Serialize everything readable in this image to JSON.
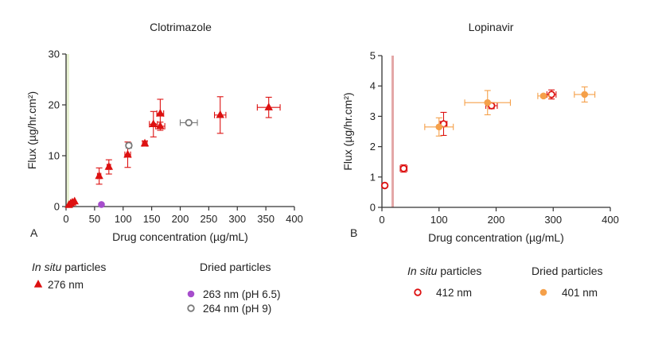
{
  "chart_data": [
    {
      "type": "scatter",
      "panel_letter": "A",
      "title": "Clotrimazole",
      "xlabel": "Drug concentration (µg/mL)",
      "ylabel": "Flux (µg/hr.cm²)",
      "xlim": [
        0,
        400
      ],
      "ylim": [
        0,
        30
      ],
      "xticks": [
        "0",
        "50",
        "100",
        "150",
        "200",
        "250",
        "300",
        "350",
        "400"
      ],
      "yticks": [
        "0",
        "10",
        "20",
        "30"
      ],
      "grid": false,
      "legend_groups": [
        {
          "heading_italic": "In situ",
          "heading_rest": " particles",
          "entries": [
            "276 nm"
          ]
        },
        {
          "heading_italic": "",
          "heading_rest": "Dried particles",
          "entries": [
            "263 nm (pH 6.5)",
            "264 nm (pH 9)"
          ]
        }
      ],
      "series": [
        {
          "name": "276 nm",
          "marker": "triangle",
          "color": "#dd1111",
          "filled": true,
          "points": [
            {
              "x": 5,
              "y": 0.3,
              "xerr": 0,
              "yerr": 0
            },
            {
              "x": 8,
              "y": 0.6,
              "xerr": 0,
              "yerr": 0
            },
            {
              "x": 11,
              "y": 0.8,
              "xerr": 0,
              "yerr": 0
            },
            {
              "x": 15,
              "y": 1.0,
              "xerr": 0,
              "yerr": 0
            },
            {
              "x": 58,
              "y": 6.0,
              "xerr": 3,
              "yerr": 1.6
            },
            {
              "x": 75,
              "y": 7.8,
              "xerr": 3,
              "yerr": 1.4
            },
            {
              "x": 108,
              "y": 10.2,
              "xerr": 5,
              "yerr": 2.5
            },
            {
              "x": 138,
              "y": 12.4,
              "xerr": 4,
              "yerr": 0.5
            },
            {
              "x": 153,
              "y": 16.2,
              "xerr": 7,
              "yerr": 2.5
            },
            {
              "x": 165,
              "y": 18.3,
              "xerr": 6,
              "yerr": 2.8
            },
            {
              "x": 165,
              "y": 15.8,
              "xerr": 8,
              "yerr": 0.8
            },
            {
              "x": 270,
              "y": 18.0,
              "xerr": 10,
              "yerr": 3.6
            },
            {
              "x": 355,
              "y": 19.5,
              "xerr": 20,
              "yerr": 2.0
            }
          ]
        },
        {
          "name": "263 nm (pH 6.5)",
          "marker": "circle",
          "color": "#a64dcc",
          "filled": true,
          "points": [
            {
              "x": 62,
              "y": 0.4,
              "xerr": 0,
              "yerr": 0
            }
          ]
        },
        {
          "name": "264 nm (pH 9)",
          "marker": "circle",
          "color": "#7a7a7a",
          "filled": false,
          "points": [
            {
              "x": 110,
              "y": 12.0,
              "xerr": 0,
              "yerr": 0.5
            },
            {
              "x": 215,
              "y": 16.5,
              "xerr": 15,
              "yerr": 0
            }
          ]
        }
      ]
    },
    {
      "type": "scatter",
      "panel_letter": "B",
      "title": "Lopinavir",
      "xlabel": "Drug concentration (µg/mL)",
      "ylabel": "Flux (µg/hr.cm²)",
      "xlim": [
        0,
        400
      ],
      "ylim": [
        0,
        5
      ],
      "xticks": [
        "0",
        "100",
        "200",
        "300",
        "400"
      ],
      "yticks": [
        "0",
        "1",
        "2",
        "3",
        "4",
        "5"
      ],
      "grid": false,
      "legend_groups": [
        {
          "heading_italic": "In situ",
          "heading_rest": " particles",
          "entries": [
            "412 nm"
          ]
        },
        {
          "heading_italic": "",
          "heading_rest": "Dried particles",
          "entries": [
            "401 nm"
          ]
        }
      ],
      "series": [
        {
          "name": "412 nm",
          "marker": "circle",
          "color": "#dd1111",
          "filled": false,
          "points": [
            {
              "x": 5,
              "y": 0.72,
              "xerr": 0,
              "yerr": 0
            },
            {
              "x": 38,
              "y": 1.28,
              "xerr": 6,
              "yerr": 0.12
            },
            {
              "x": 108,
              "y": 2.75,
              "xerr": 6,
              "yerr": 0.38
            },
            {
              "x": 192,
              "y": 3.35,
              "xerr": 10,
              "yerr": 0.1
            },
            {
              "x": 297,
              "y": 3.72,
              "xerr": 8,
              "yerr": 0.15
            }
          ]
        },
        {
          "name": "401 nm",
          "marker": "circle",
          "color": "#f5a04a",
          "filled": true,
          "points": [
            {
              "x": 100,
              "y": 2.65,
              "xerr": 25,
              "yerr": 0.3
            },
            {
              "x": 185,
              "y": 3.45,
              "xerr": 40,
              "yerr": 0.4
            },
            {
              "x": 283,
              "y": 3.67,
              "xerr": 10,
              "yerr": 0.05
            },
            {
              "x": 355,
              "y": 3.72,
              "xerr": 18,
              "yerr": 0.25
            }
          ]
        }
      ]
    }
  ]
}
